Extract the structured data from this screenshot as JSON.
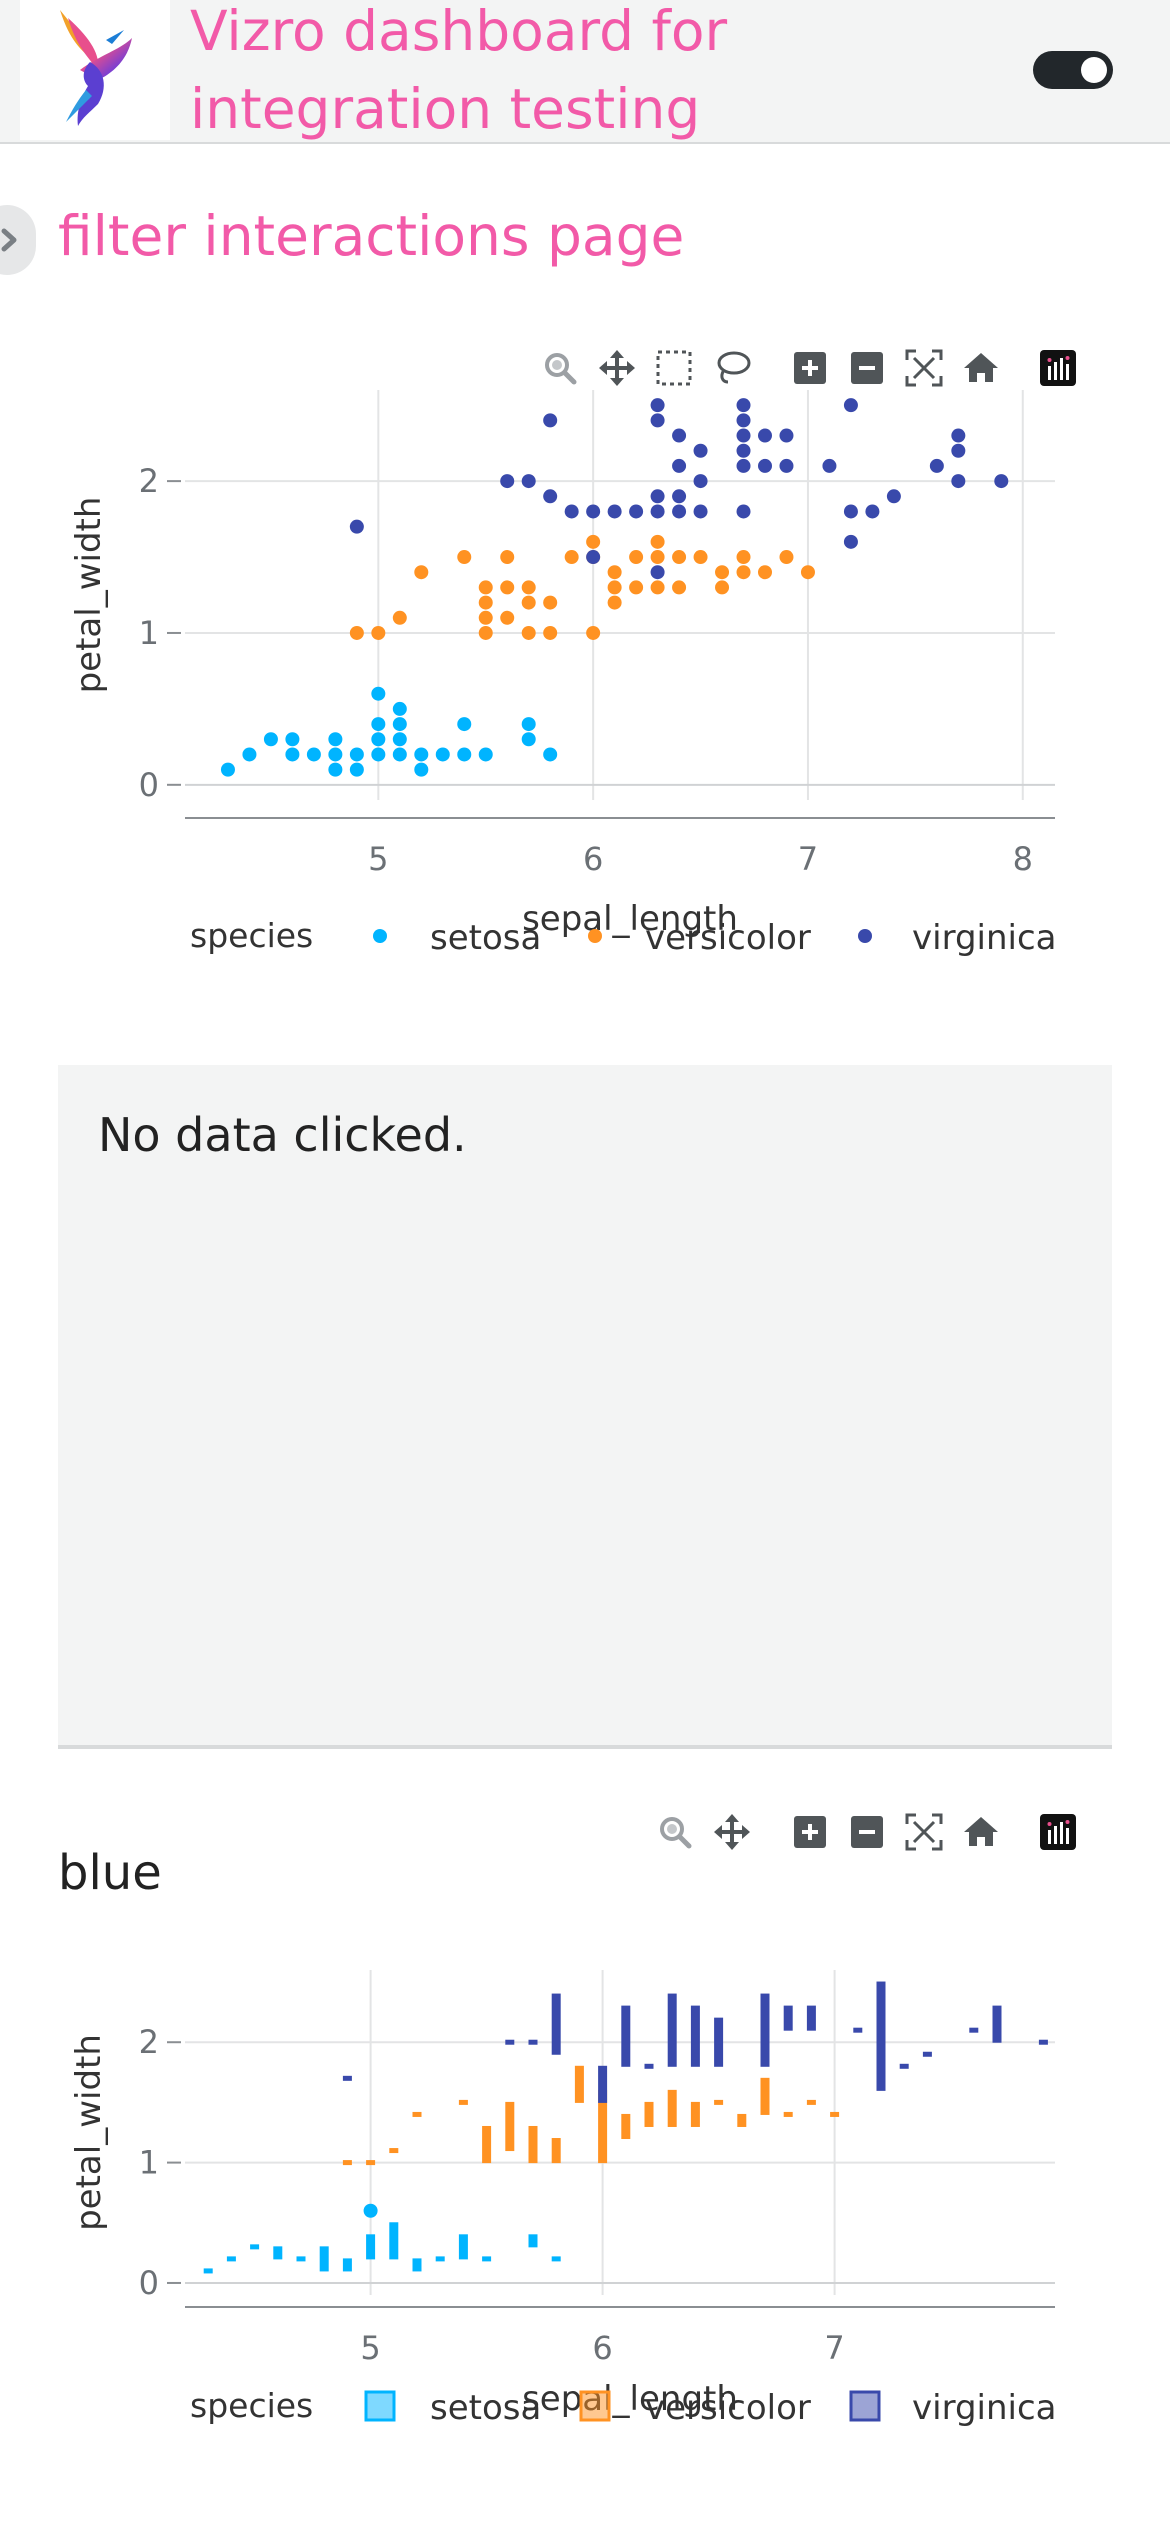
{
  "header": {
    "title": "Vizro dashboard for integration testing",
    "logo_icon": "hummingbird-logo-icon",
    "theme_toggle": "dark-mode-toggle"
  },
  "page": {
    "title": "filter interactions page"
  },
  "card": {
    "text": "No data clicked."
  },
  "colors": {
    "accent": "#f25aa8",
    "setosa": "#00b4ff",
    "versicolor": "#ff9222",
    "virginica": "#3949ab"
  },
  "modebar_icons": [
    "zoom-icon",
    "pan-icon",
    "box-select-icon",
    "lasso-select-icon",
    "zoom-in-icon",
    "zoom-out-icon",
    "autoscale-icon",
    "reset-axes-icon",
    "plotly-logo-icon"
  ],
  "chart_data": [
    {
      "type": "scatter",
      "title": "",
      "xlabel": "sepal_length",
      "ylabel": "petal_width",
      "xlim": [
        4.1,
        8.15
      ],
      "ylim": [
        -0.1,
        2.6
      ],
      "xticks": [
        5,
        6,
        7,
        8
      ],
      "yticks": [
        0,
        1,
        2
      ],
      "legend": {
        "title": "species",
        "position": "bottom",
        "marker": "dot"
      },
      "series": [
        {
          "name": "setosa",
          "color": "#00b4ff",
          "points": [
            [
              4.3,
              0.1
            ],
            [
              4.4,
              0.2
            ],
            [
              4.5,
              0.3
            ],
            [
              4.6,
              0.3
            ],
            [
              4.6,
              0.2
            ],
            [
              4.7,
              0.2
            ],
            [
              4.8,
              0.3
            ],
            [
              4.8,
              0.2
            ],
            [
              4.8,
              0.1
            ],
            [
              4.9,
              0.2
            ],
            [
              4.9,
              0.1
            ],
            [
              5.0,
              0.6
            ],
            [
              5.0,
              0.4
            ],
            [
              5.0,
              0.3
            ],
            [
              5.0,
              0.2
            ],
            [
              5.1,
              0.5
            ],
            [
              5.1,
              0.4
            ],
            [
              5.1,
              0.3
            ],
            [
              5.1,
              0.2
            ],
            [
              5.2,
              0.2
            ],
            [
              5.2,
              0.1
            ],
            [
              5.3,
              0.2
            ],
            [
              5.4,
              0.4
            ],
            [
              5.4,
              0.2
            ],
            [
              5.5,
              0.2
            ],
            [
              5.7,
              0.4
            ],
            [
              5.7,
              0.3
            ],
            [
              5.8,
              0.2
            ]
          ]
        },
        {
          "name": "versicolor",
          "color": "#ff9222",
          "points": [
            [
              4.9,
              1.0
            ],
            [
              5.0,
              1.0
            ],
            [
              5.1,
              1.1
            ],
            [
              5.2,
              1.4
            ],
            [
              5.4,
              1.5
            ],
            [
              5.5,
              1.3
            ],
            [
              5.5,
              1.2
            ],
            [
              5.5,
              1.1
            ],
            [
              5.5,
              1.0
            ],
            [
              5.6,
              1.5
            ],
            [
              5.6,
              1.3
            ],
            [
              5.6,
              1.1
            ],
            [
              5.7,
              1.3
            ],
            [
              5.7,
              1.2
            ],
            [
              5.7,
              1.0
            ],
            [
              5.8,
              1.2
            ],
            [
              5.8,
              1.0
            ],
            [
              5.9,
              1.5
            ],
            [
              6.0,
              1.6
            ],
            [
              6.0,
              1.5
            ],
            [
              6.0,
              1.0
            ],
            [
              6.1,
              1.4
            ],
            [
              6.1,
              1.3
            ],
            [
              6.1,
              1.2
            ],
            [
              6.2,
              1.5
            ],
            [
              6.2,
              1.3
            ],
            [
              6.3,
              1.6
            ],
            [
              6.3,
              1.5
            ],
            [
              6.3,
              1.3
            ],
            [
              6.4,
              1.5
            ],
            [
              6.4,
              1.3
            ],
            [
              6.5,
              1.5
            ],
            [
              6.6,
              1.4
            ],
            [
              6.6,
              1.3
            ],
            [
              6.7,
              1.5
            ],
            [
              6.7,
              1.4
            ],
            [
              6.8,
              1.4
            ],
            [
              6.9,
              1.5
            ],
            [
              7.0,
              1.4
            ]
          ]
        },
        {
          "name": "virginica",
          "color": "#3949ab",
          "points": [
            [
              4.9,
              1.7
            ],
            [
              5.6,
              2.0
            ],
            [
              5.7,
              2.0
            ],
            [
              5.8,
              2.4
            ],
            [
              5.8,
              1.9
            ],
            [
              5.9,
              1.8
            ],
            [
              6.0,
              1.8
            ],
            [
              6.0,
              1.5
            ],
            [
              6.1,
              1.8
            ],
            [
              6.2,
              1.8
            ],
            [
              6.3,
              1.4
            ],
            [
              6.3,
              1.8
            ],
            [
              6.3,
              1.9
            ],
            [
              6.3,
              2.4
            ],
            [
              6.3,
              2.5
            ],
            [
              6.4,
              2.3
            ],
            [
              6.4,
              2.1
            ],
            [
              6.4,
              1.9
            ],
            [
              6.4,
              1.8
            ],
            [
              6.5,
              2.2
            ],
            [
              6.5,
              2.0
            ],
            [
              6.5,
              1.8
            ],
            [
              6.7,
              2.5
            ],
            [
              6.7,
              2.4
            ],
            [
              6.7,
              2.3
            ],
            [
              6.7,
              2.2
            ],
            [
              6.7,
              2.1
            ],
            [
              6.7,
              1.8
            ],
            [
              6.8,
              2.3
            ],
            [
              6.8,
              2.1
            ],
            [
              6.9,
              2.3
            ],
            [
              6.9,
              2.1
            ],
            [
              7.1,
              2.1
            ],
            [
              7.2,
              2.5
            ],
            [
              7.2,
              1.8
            ],
            [
              7.2,
              1.6
            ],
            [
              7.3,
              1.8
            ],
            [
              7.4,
              1.9
            ],
            [
              7.6,
              2.1
            ],
            [
              7.7,
              2.3
            ],
            [
              7.7,
              2.2
            ],
            [
              7.7,
              2.0
            ],
            [
              7.9,
              2.0
            ]
          ]
        }
      ]
    },
    {
      "type": "box",
      "title": "blue",
      "xlabel": "sepal_length",
      "ylabel": "petal_width",
      "xlim": [
        4.2,
        7.95
      ],
      "ylim": [
        -0.1,
        2.6
      ],
      "xticks": [
        5,
        6,
        7
      ],
      "yticks": [
        0,
        1,
        2
      ],
      "legend": {
        "title": "species",
        "position": "bottom",
        "marker": "box"
      },
      "series": [
        {
          "name": "setosa",
          "color": "#00b4ff",
          "boxes": [
            [
              4.3,
              0.1,
              0.1
            ],
            [
              4.4,
              0.2,
              0.2
            ],
            [
              4.5,
              0.3,
              0.3
            ],
            [
              4.6,
              0.2,
              0.3
            ],
            [
              4.7,
              0.2,
              0.2
            ],
            [
              4.8,
              0.1,
              0.3
            ],
            [
              4.9,
              0.1,
              0.2
            ],
            [
              5.0,
              0.2,
              0.4
            ],
            [
              5.1,
              0.2,
              0.5
            ],
            [
              5.2,
              0.1,
              0.2
            ],
            [
              5.3,
              0.2,
              0.2
            ],
            [
              5.4,
              0.2,
              0.4
            ],
            [
              5.5,
              0.2,
              0.2
            ],
            [
              5.7,
              0.3,
              0.4
            ],
            [
              5.8,
              0.2,
              0.2
            ]
          ],
          "outliers": [
            [
              5.0,
              0.6
            ]
          ]
        },
        {
          "name": "versicolor",
          "color": "#ff9222",
          "boxes": [
            [
              4.9,
              1.0,
              1.0
            ],
            [
              5.0,
              1.0,
              1.0
            ],
            [
              5.1,
              1.1,
              1.1
            ],
            [
              5.2,
              1.4,
              1.4
            ],
            [
              5.4,
              1.5,
              1.5
            ],
            [
              5.5,
              1.0,
              1.3
            ],
            [
              5.6,
              1.1,
              1.5
            ],
            [
              5.7,
              1.0,
              1.3
            ],
            [
              5.8,
              1.0,
              1.2
            ],
            [
              5.9,
              1.5,
              1.8
            ],
            [
              6.0,
              1.0,
              1.6
            ],
            [
              6.1,
              1.2,
              1.4
            ],
            [
              6.2,
              1.3,
              1.5
            ],
            [
              6.3,
              1.3,
              1.6
            ],
            [
              6.4,
              1.3,
              1.5
            ],
            [
              6.5,
              1.5,
              1.5
            ],
            [
              6.6,
              1.3,
              1.4
            ],
            [
              6.7,
              1.4,
              1.7
            ],
            [
              6.8,
              1.4,
              1.4
            ],
            [
              6.9,
              1.5,
              1.5
            ],
            [
              7.0,
              1.4,
              1.4
            ]
          ]
        },
        {
          "name": "virginica",
          "color": "#3949ab",
          "boxes": [
            [
              4.9,
              1.7,
              1.7
            ],
            [
              5.6,
              2.0,
              2.0
            ],
            [
              5.7,
              2.0,
              2.0
            ],
            [
              5.8,
              1.9,
              2.4
            ],
            [
              6.0,
              1.5,
              1.8
            ],
            [
              6.1,
              1.8,
              2.3
            ],
            [
              6.2,
              1.8,
              1.8
            ],
            [
              6.3,
              1.8,
              2.4
            ],
            [
              6.4,
              1.8,
              2.3
            ],
            [
              6.5,
              1.8,
              2.2
            ],
            [
              6.7,
              1.8,
              2.4
            ],
            [
              6.8,
              2.1,
              2.3
            ],
            [
              6.9,
              2.1,
              2.3
            ],
            [
              7.1,
              2.1,
              2.1
            ],
            [
              7.2,
              1.6,
              2.5
            ],
            [
              7.3,
              1.8,
              1.8
            ],
            [
              7.4,
              1.9,
              1.9
            ],
            [
              7.6,
              2.1,
              2.1
            ],
            [
              7.7,
              2.0,
              2.3
            ],
            [
              7.9,
              2.0,
              2.0
            ]
          ]
        }
      ]
    }
  ]
}
